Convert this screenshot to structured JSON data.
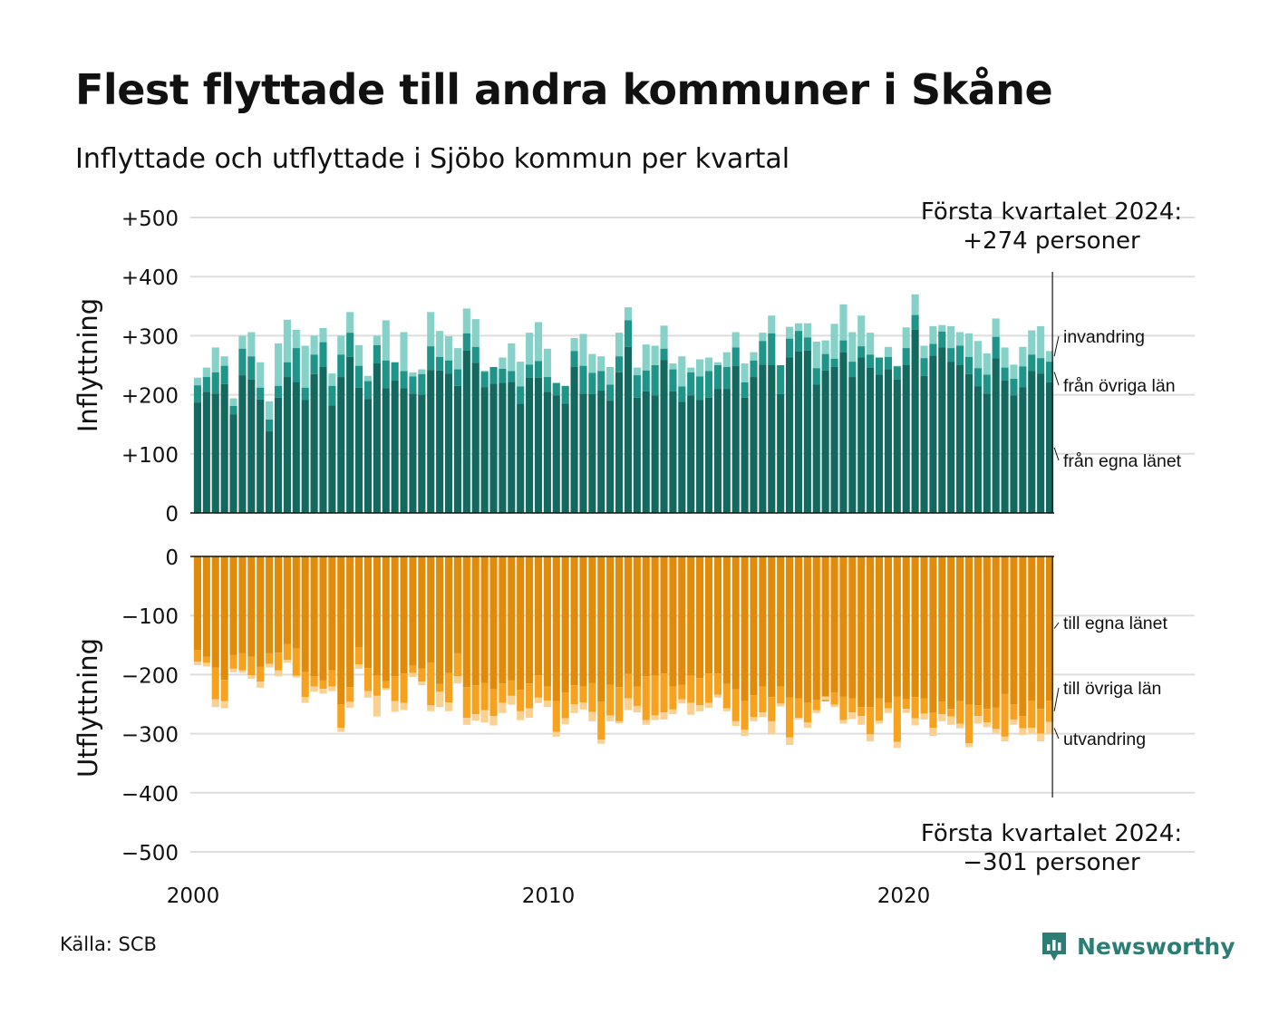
{
  "title": "Flest flyttade till andra kommuner i Skåne",
  "subtitle": "Inflyttade och utflyttade i Sjöbo kommun per kvartal",
  "source": "Källa: SCB",
  "logo": {
    "text": "Newsworthy",
    "color": "#2e7d74"
  },
  "colors": {
    "in_own": "#13695f",
    "in_other": "#1f9488",
    "in_abroad": "#86d2c8",
    "out_own": "#e08b0a",
    "out_other": "#f6a21e",
    "out_abroad": "#fbd192",
    "grid": "#dddddd",
    "axis": "#111111"
  },
  "chart_data": [
    {
      "type": "bar",
      "stacked": true,
      "panel": "top",
      "ylabel": "Inflyttning",
      "ylim": [
        0,
        500
      ],
      "yticks": [
        0,
        100,
        200,
        300,
        400,
        500
      ],
      "ytick_labels": [
        "0",
        "+100",
        "+200",
        "+300",
        "+400",
        "+500"
      ],
      "x_axis": "quarters, 2000 Q1 – 2024 Q1",
      "xticks": [
        "2000",
        "2010",
        "2020"
      ],
      "annotation": {
        "line1": "Första kvartalet 2024:",
        "line2": "+274 personer"
      },
      "series_labels": [
        "invandring",
        "från övriga län",
        "från egna länet"
      ],
      "from_own_county": [
        187,
        205,
        202,
        218,
        167,
        233,
        226,
        192,
        138,
        195,
        230,
        222,
        191,
        235,
        247,
        182,
        230,
        264,
        212,
        193,
        253,
        211,
        224,
        211,
        202,
        200,
        242,
        241,
        236,
        215,
        275,
        254,
        213,
        219,
        220,
        222,
        185,
        229,
        229,
        205,
        199,
        185,
        247,
        202,
        201,
        207,
        190,
        238,
        281,
        195,
        206,
        199,
        259,
        206,
        188,
        199,
        191,
        195,
        210,
        210,
        249,
        195,
        230,
        251,
        250,
        201,
        263,
        273,
        275,
        217,
        241,
        247,
        272,
        230,
        263,
        246,
        234,
        243,
        226,
        250,
        310,
        232,
        266,
        280,
        256,
        250,
        235,
        214,
        202,
        262,
        224,
        199,
        213,
        240,
        236,
        221
      ],
      "from_other_counties": [
        216,
        230,
        238,
        249,
        181,
        278,
        265,
        212,
        158,
        215,
        255,
        279,
        212,
        268,
        289,
        215,
        268,
        305,
        249,
        223,
        284,
        258,
        255,
        240,
        231,
        235,
        282,
        264,
        258,
        243,
        304,
        281,
        239,
        247,
        244,
        240,
        214,
        251,
        257,
        230,
        220,
        215,
        274,
        249,
        237,
        240,
        217,
        265,
        326,
        233,
        241,
        250,
        278,
        243,
        214,
        238,
        231,
        240,
        250,
        247,
        280,
        221,
        258,
        291,
        304,
        250,
        295,
        308,
        297,
        245,
        269,
        261,
        292,
        256,
        282,
        268,
        263,
        264,
        248,
        279,
        335,
        262,
        286,
        307,
        279,
        283,
        264,
        245,
        234,
        298,
        246,
        227,
        248,
        268,
        262,
        256
      ],
      "immigration": [
        229,
        246,
        280,
        265,
        194,
        300,
        306,
        255,
        189,
        287,
        327,
        310,
        283,
        300,
        313,
        236,
        300,
        340,
        284,
        232,
        300,
        326,
        252,
        306,
        238,
        243,
        340,
        308,
        299,
        279,
        346,
        328,
        241,
        246,
        263,
        287,
        256,
        305,
        323,
        278,
        219,
        213,
        296,
        303,
        269,
        265,
        247,
        305,
        348,
        246,
        285,
        283,
        317,
        253,
        265,
        246,
        260,
        263,
        255,
        272,
        306,
        253,
        272,
        305,
        334,
        244,
        315,
        321,
        321,
        290,
        292,
        320,
        353,
        306,
        334,
        305,
        263,
        281,
        249,
        314,
        370,
        283,
        316,
        318,
        316,
        306,
        304,
        291,
        270,
        329,
        280,
        251,
        281,
        309,
        316,
        274
      ]
    },
    {
      "type": "bar",
      "stacked": true,
      "panel": "bottom",
      "ylabel": "Utflyttning",
      "ylim": [
        -500,
        0
      ],
      "yticks": [
        0,
        -100,
        -200,
        -300,
        -400,
        -500
      ],
      "ytick_labels": [
        "0",
        "−100",
        "−200",
        "−300",
        "−400",
        "−500"
      ],
      "annotation": {
        "line1": "Första kvartalet 2024:",
        "line2": "−301 personer"
      },
      "series_labels": [
        "till egna länet",
        "till övriga län",
        "utvandring"
      ],
      "to_own_county": [
        -158,
        -170,
        -188,
        -209,
        -167,
        -164,
        -170,
        -187,
        -164,
        -163,
        -148,
        -156,
        -196,
        -203,
        -210,
        -193,
        -250,
        -221,
        -154,
        -189,
        -202,
        -211,
        -203,
        -198,
        -185,
        -190,
        -180,
        -216,
        -197,
        -164,
        -221,
        -218,
        -214,
        -225,
        -215,
        -210,
        -226,
        -215,
        -201,
        -220,
        -245,
        -230,
        -218,
        -220,
        -214,
        -246,
        -217,
        -221,
        -199,
        -220,
        -203,
        -202,
        -198,
        -220,
        -217,
        -202,
        -206,
        -198,
        -198,
        -216,
        -225,
        -245,
        -235,
        -220,
        -238,
        -220,
        -239,
        -240,
        -248,
        -243,
        -245,
        -230,
        -237,
        -240,
        -255,
        -255,
        -240,
        -248,
        -237,
        -242,
        -238,
        -240,
        -265,
        -246,
        -258,
        -245,
        -251,
        -252,
        -258,
        -256,
        -233,
        -250,
        -270,
        -245,
        -258,
        -244
      ],
      "to_other_counties": [
        -178,
        -180,
        -242,
        -245,
        -190,
        -193,
        -201,
        -212,
        -182,
        -193,
        -175,
        -202,
        -238,
        -220,
        -224,
        -220,
        -290,
        -246,
        -183,
        -228,
        -236,
        -223,
        -245,
        -248,
        -197,
        -212,
        -252,
        -229,
        -247,
        -203,
        -273,
        -267,
        -260,
        -270,
        -248,
        -236,
        -262,
        -257,
        -239,
        -244,
        -297,
        -274,
        -250,
        -247,
        -263,
        -310,
        -269,
        -279,
        -240,
        -253,
        -277,
        -269,
        -264,
        -259,
        -242,
        -248,
        -252,
        -248,
        -234,
        -257,
        -279,
        -293,
        -272,
        -264,
        -279,
        -249,
        -306,
        -273,
        -281,
        -260,
        -237,
        -251,
        -277,
        -264,
        -270,
        -301,
        -278,
        -257,
        -314,
        -258,
        -274,
        -266,
        -290,
        -267,
        -271,
        -283,
        -316,
        -270,
        -281,
        -292,
        -305,
        -276,
        -291,
        -290,
        -300,
        -280
      ],
      "emigration": [
        -184,
        -186,
        -255,
        -257,
        -196,
        -197,
        -207,
        -222,
        -188,
        -203,
        -180,
        -205,
        -248,
        -229,
        -232,
        -228,
        -297,
        -256,
        -190,
        -239,
        -271,
        -226,
        -263,
        -260,
        -204,
        -218,
        -262,
        -255,
        -262,
        -215,
        -285,
        -278,
        -281,
        -286,
        -265,
        -251,
        -277,
        -273,
        -248,
        -255,
        -305,
        -284,
        -265,
        -259,
        -279,
        -317,
        -279,
        -283,
        -260,
        -264,
        -285,
        -277,
        -276,
        -267,
        -249,
        -268,
        -262,
        -256,
        -239,
        -262,
        -287,
        -304,
        -279,
        -272,
        -301,
        -254,
        -319,
        -276,
        -290,
        -265,
        -243,
        -255,
        -283,
        -275,
        -285,
        -313,
        -283,
        -265,
        -324,
        -265,
        -286,
        -276,
        -304,
        -279,
        -285,
        -291,
        -323,
        -283,
        -289,
        -299,
        -313,
        -285,
        -302,
        -299,
        -313,
        -301
      ]
    }
  ]
}
